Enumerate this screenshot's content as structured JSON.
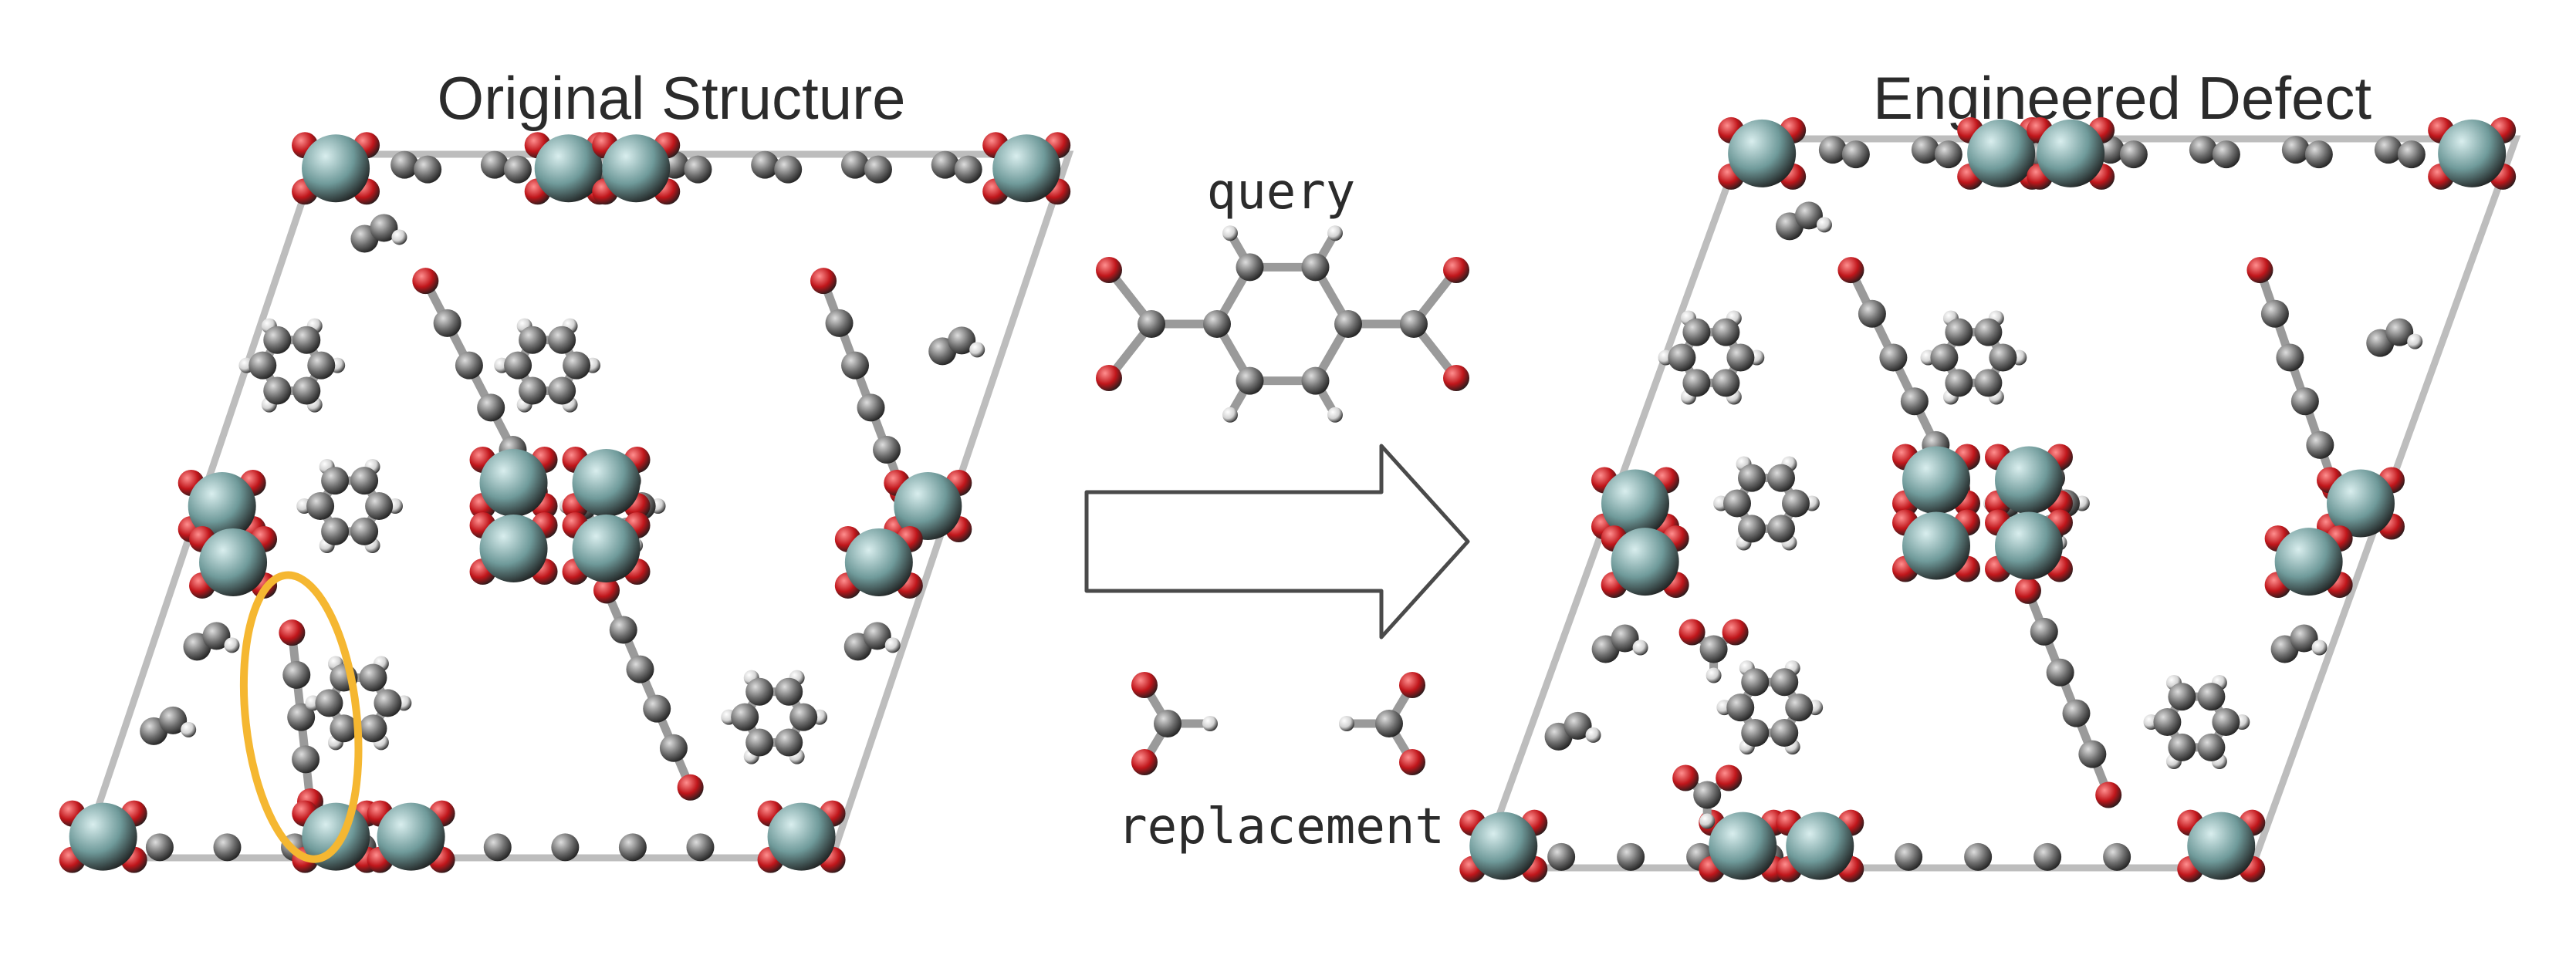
{
  "titles": {
    "original": "Original Structure",
    "engineered": "Engineered Defect"
  },
  "labels": {
    "query": "query",
    "replacement": "replacement"
  },
  "colors": {
    "metal": "#6f9a9a",
    "oxygen": "#c0161b",
    "carbon": "#6d6d6d",
    "hydrogen": "#d2d2d2",
    "cell_edge": "#bdbdbd",
    "highlight": "#f5b731",
    "arrow_stroke": "#4a4a4a"
  },
  "icons": {
    "arrow": "right-arrow-icon",
    "highlight": "highlight-ellipse"
  }
}
